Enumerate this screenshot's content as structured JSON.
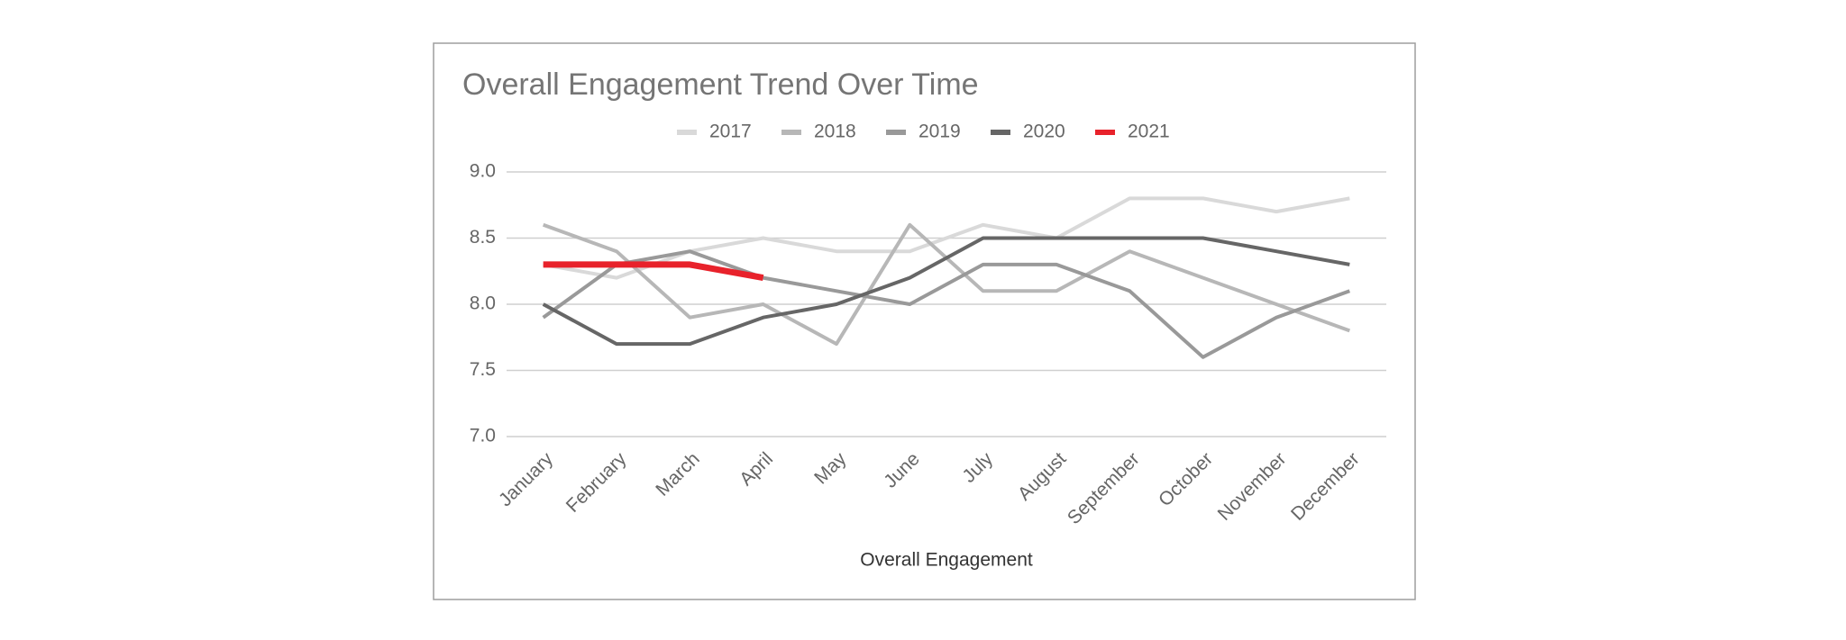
{
  "chart_data": {
    "type": "line",
    "title": "Overall Engagement Trend Over Time",
    "x_label": "Overall Engagement",
    "categories": [
      "January",
      "February",
      "March",
      "April",
      "May",
      "June",
      "July",
      "August",
      "September",
      "October",
      "November",
      "December"
    ],
    "series": [
      {
        "name": "2017",
        "color": "#d9d9d9",
        "values": [
          8.3,
          8.2,
          8.4,
          8.5,
          8.4,
          8.4,
          8.6,
          8.5,
          8.8,
          8.8,
          8.7,
          8.8
        ]
      },
      {
        "name": "2018",
        "color": "#b7b7b7",
        "values": [
          8.6,
          8.4,
          7.9,
          8.0,
          7.7,
          8.6,
          8.1,
          8.1,
          8.4,
          8.2,
          8.0,
          7.8
        ]
      },
      {
        "name": "2019",
        "color": "#999999",
        "values": [
          7.9,
          8.3,
          8.4,
          8.2,
          8.1,
          8.0,
          8.3,
          8.3,
          8.1,
          7.6,
          7.9,
          8.1
        ]
      },
      {
        "name": "2020",
        "color": "#666666",
        "values": [
          8.0,
          7.7,
          7.7,
          7.9,
          8.0,
          8.2,
          8.5,
          8.5,
          8.5,
          8.5,
          8.4,
          8.3
        ]
      },
      {
        "name": "2021",
        "color": "#e8222b",
        "values": [
          8.3,
          8.3,
          8.3,
          8.2,
          null,
          null,
          null,
          null,
          null,
          null,
          null,
          null
        ]
      }
    ],
    "ylim": [
      7,
      9
    ],
    "yticks": [
      {
        "value": 7,
        "label": "7.0"
      },
      {
        "value": 7.5,
        "label": "7.5"
      },
      {
        "value": 8,
        "label": "8.0"
      },
      {
        "value": 8.5,
        "label": "8.5"
      },
      {
        "value": 9,
        "label": "9.0"
      }
    ],
    "grid": true,
    "legend": "top"
  }
}
